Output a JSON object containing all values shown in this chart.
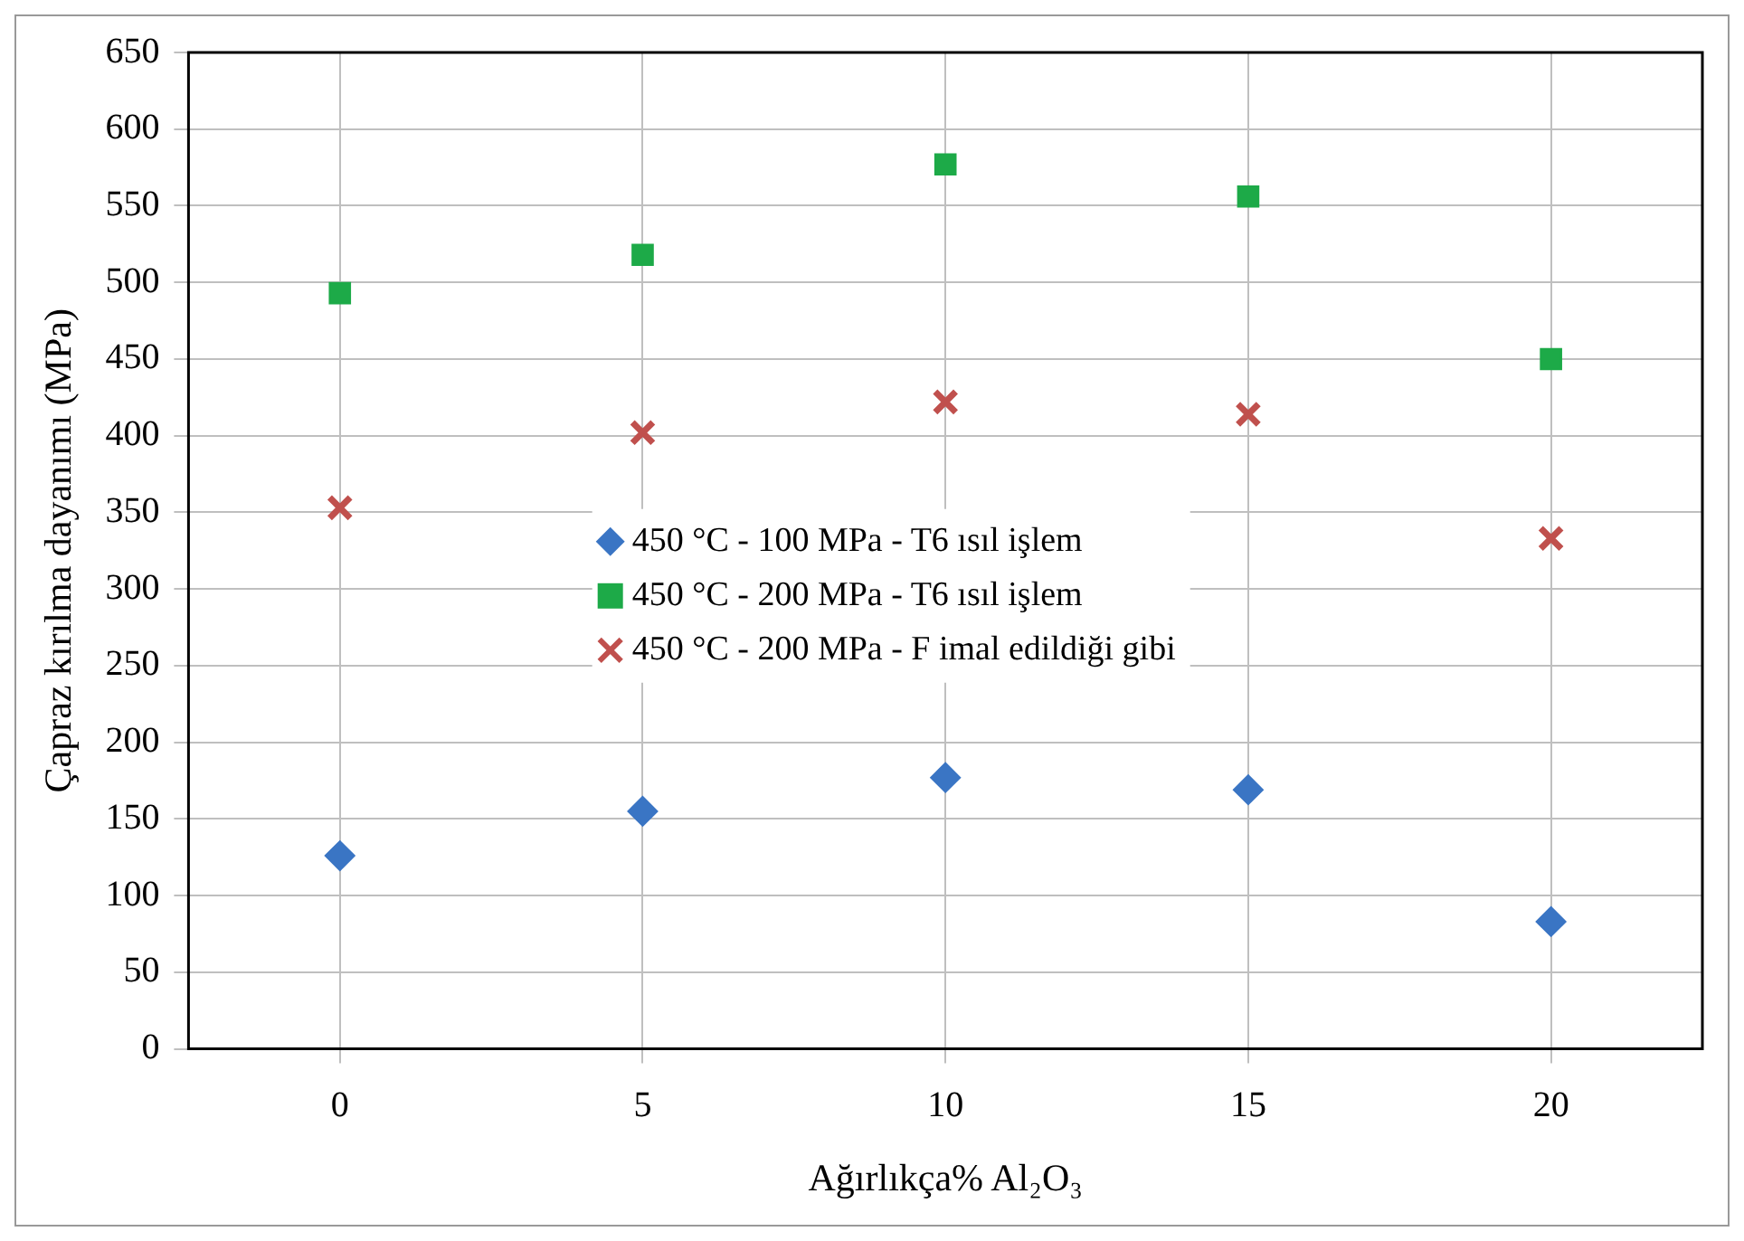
{
  "chart_data": {
    "type": "scatter",
    "xlabel": "Ağırlıkça% Al₂O₃",
    "ylabel": "Çapraz kırılma dayanımı (MPa)",
    "categories": [
      "0",
      "5",
      "10",
      "15",
      "20"
    ],
    "series": [
      {
        "name": "450 °C - 100 MPa - T6 ısıl işlem",
        "color": "#3a75c4",
        "marker": "diamond",
        "values": [
          126,
          155,
          177,
          169,
          83
        ]
      },
      {
        "name": "450 °C - 200 MPa - T6 ısıl işlem",
        "color": "#1daa48",
        "marker": "square",
        "values": [
          493,
          518,
          577,
          556,
          450
        ]
      },
      {
        "name": "450 °C - 200 MPa - F imal edildiği gibi",
        "color": "#c0504d",
        "marker": "cross",
        "values": [
          353,
          402,
          422,
          414,
          333
        ]
      }
    ],
    "ylim": [
      0,
      650
    ],
    "yticks": [
      0,
      50,
      100,
      150,
      200,
      250,
      300,
      350,
      400,
      450,
      500,
      550,
      600,
      650
    ],
    "grid": true,
    "legend": "center"
  }
}
